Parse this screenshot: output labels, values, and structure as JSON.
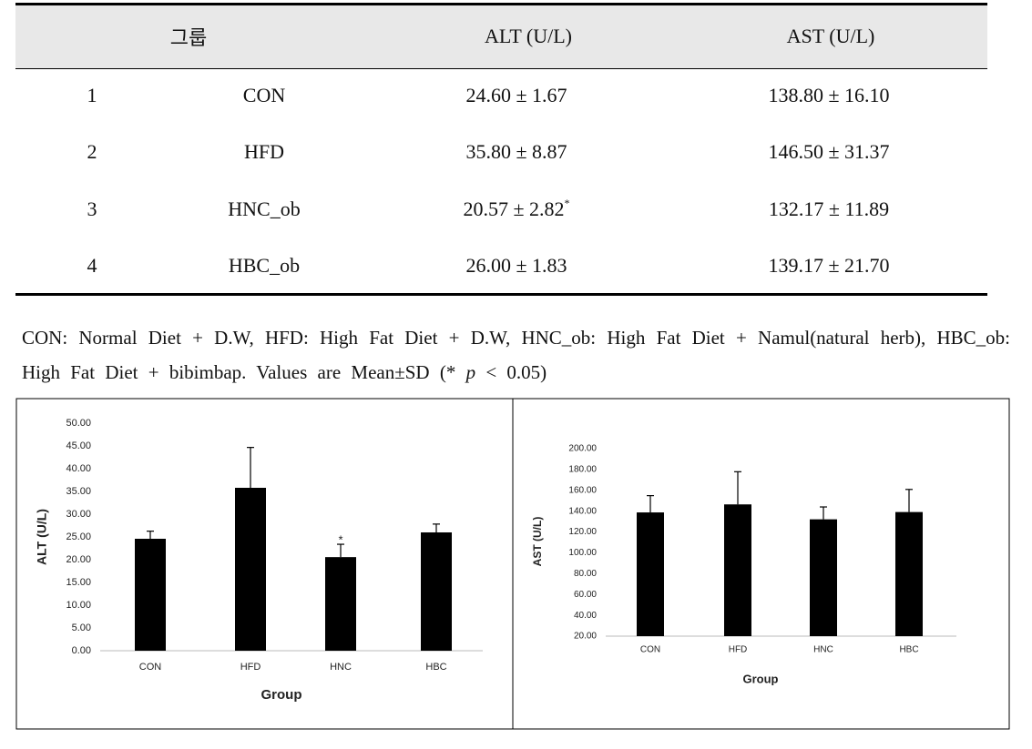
{
  "table": {
    "header": [
      "그룹",
      "ALT (U/L)",
      "AST (U/L)"
    ],
    "rows": [
      [
        "1",
        "CON",
        "24.60 ± 1.67",
        "138.80 ± 16.10"
      ],
      [
        "2",
        "HFD",
        "35.80 ± 8.87",
        "146.50 ± 31.37"
      ],
      [
        "3",
        "HNC_ob",
        {
          "text": "20.57 ± 2.82",
          "sup": "*"
        },
        "132.17 ± 11.89"
      ],
      [
        "4",
        "HBC_ob",
        "26.00 ± 1.83",
        "139.17 ± 21.70"
      ]
    ]
  },
  "footnote": [
    "CON: Normal Diet + D.W, HFD: High Fat Diet + D.W, HNC_ob: High Fat Diet + Namul(natural herb), HBC_ob: High Fat Diet + bibimbap. Values are Mean±SD (* ",
    "p",
    " < 0.05)"
  ],
  "chart_data": [
    {
      "type": "bar",
      "ylabel": "ALT (U/L)",
      "xlabel": "Group",
      "color": "#000000",
      "categories": [
        "CON",
        "HFD",
        "HNC",
        "HBC"
      ],
      "values": [
        24.6,
        35.8,
        20.57,
        26.0
      ],
      "errors": [
        1.67,
        8.87,
        2.82,
        1.83
      ],
      "significance": [
        null,
        null,
        "*",
        null
      ],
      "ylim": [
        0,
        50
      ],
      "yticks": [
        {
          "value": 0,
          "label": "0.00"
        },
        {
          "value": 5,
          "label": "5.00"
        },
        {
          "value": 10,
          "label": "10.00"
        },
        {
          "value": 15,
          "label": "15.00"
        },
        {
          "value": 20,
          "label": "20.00"
        },
        {
          "value": 25,
          "label": "25.00"
        },
        {
          "value": 30,
          "label": "30.00"
        },
        {
          "value": 35,
          "label": "35.00"
        },
        {
          "value": 40,
          "label": "40.00"
        },
        {
          "value": 45,
          "label": "45.00"
        },
        {
          "value": 50,
          "label": "50.00"
        }
      ],
      "grid": false
    },
    {
      "type": "bar",
      "ylabel": "AST (U/L)",
      "xlabel": "Group",
      "color": "#000000",
      "categories": [
        "CON",
        "HFD",
        "HNC",
        "HBC"
      ],
      "values": [
        138.8,
        146.5,
        132.17,
        139.17
      ],
      "errors": [
        16.1,
        31.37,
        11.89,
        21.7
      ],
      "ylim": [
        20,
        200
      ],
      "yticks": [
        {
          "value": 20,
          "label": "20.00"
        },
        {
          "value": 40,
          "label": "40.00"
        },
        {
          "value": 60,
          "label": "60.00"
        },
        {
          "value": 80,
          "label": "80.00"
        },
        {
          "value": 100,
          "label": "100.00"
        },
        {
          "value": 120,
          "label": "120.00"
        },
        {
          "value": 140,
          "label": "140.00"
        },
        {
          "value": 160,
          "label": "160.00"
        },
        {
          "value": 180,
          "label": "180.00"
        },
        {
          "value": 200,
          "label": "200.00"
        }
      ],
      "grid": false
    }
  ]
}
